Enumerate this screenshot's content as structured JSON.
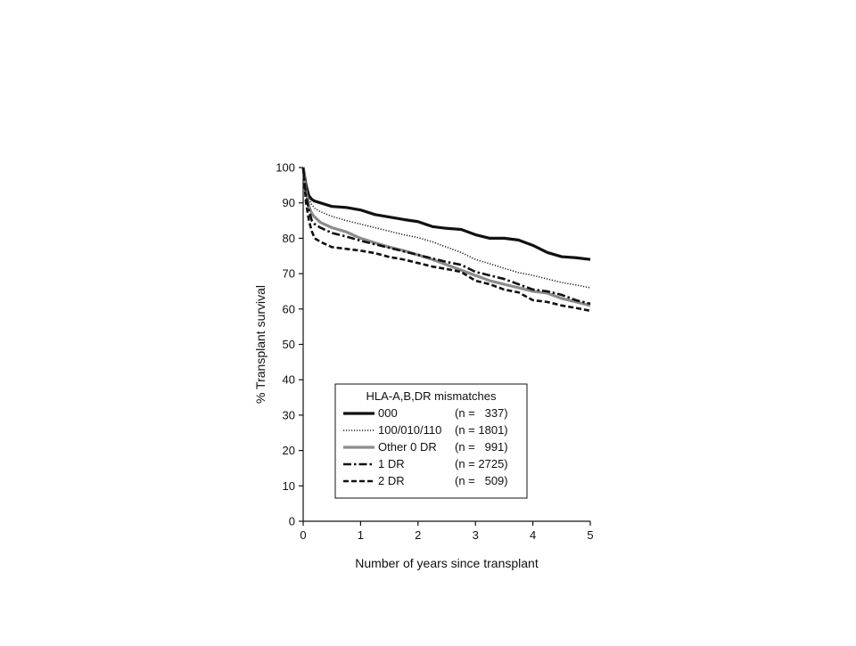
{
  "chart_data": {
    "type": "line",
    "title": "",
    "xlabel": "Number of years since transplant",
    "ylabel": "% Transplant survival",
    "xlim": [
      0,
      5
    ],
    "ylim": [
      0,
      100
    ],
    "xticks": [
      0,
      1,
      2,
      3,
      4,
      5
    ],
    "yticks": [
      0,
      10,
      20,
      30,
      40,
      50,
      60,
      70,
      80,
      90,
      100
    ],
    "grid": false,
    "legend": {
      "title": "HLA-A,B,DR mismatches",
      "placement": "bottom-center"
    },
    "series": [
      {
        "name": "000",
        "n_label": "(n =   337)",
        "color": "#111111",
        "style": "solid-thick",
        "x": [
          0,
          0.05,
          0.1,
          0.15,
          0.2,
          0.3,
          0.5,
          0.75,
          1.0,
          1.25,
          1.5,
          1.75,
          2.0,
          2.25,
          2.5,
          2.75,
          3.0,
          3.25,
          3.5,
          3.75,
          4.0,
          4.25,
          4.5,
          4.75,
          5.0
        ],
        "y": [
          100,
          95,
          92,
          91,
          90.5,
          90,
          89,
          88.7,
          88,
          86.7,
          86,
          85.3,
          84.7,
          83.3,
          82.8,
          82.5,
          81,
          80,
          80,
          79.5,
          78,
          76,
          74.8,
          74.5,
          74
        ]
      },
      {
        "name": "100/010/110",
        "n_label": "(n = 1801)",
        "color": "#222222",
        "style": "dotted",
        "x": [
          0,
          0.05,
          0.1,
          0.15,
          0.2,
          0.3,
          0.5,
          0.75,
          1.0,
          1.25,
          1.5,
          1.75,
          2.0,
          2.25,
          2.5,
          2.75,
          3.0,
          3.25,
          3.5,
          3.75,
          4.0,
          4.25,
          4.5,
          4.75,
          5.0
        ],
        "y": [
          100,
          94,
          91,
          89.5,
          88.5,
          87.5,
          86.2,
          85,
          84,
          83,
          82,
          81,
          80.2,
          79,
          77.5,
          76,
          74,
          72.8,
          71.5,
          70.3,
          69.5,
          68.5,
          67.5,
          66.8,
          66
        ]
      },
      {
        "name": "Other 0 DR",
        "n_label": "(n =   991)",
        "color": "#8c8c8c",
        "style": "solid-gray",
        "x": [
          0,
          0.05,
          0.1,
          0.15,
          0.2,
          0.3,
          0.5,
          0.75,
          1.0,
          1.25,
          1.5,
          1.75,
          2.0,
          2.25,
          2.5,
          2.75,
          3.0,
          3.25,
          3.5,
          3.75,
          4.0,
          4.25,
          4.5,
          4.75,
          5.0
        ],
        "y": [
          100,
          93,
          89,
          87,
          86,
          84.5,
          83,
          81.8,
          80,
          78.7,
          77.5,
          76.5,
          75.3,
          74,
          72.5,
          71,
          69.5,
          68,
          67,
          66,
          65,
          64.5,
          63,
          62,
          61
        ]
      },
      {
        "name": "1 DR",
        "n_label": "(n = 2725)",
        "color": "#111111",
        "style": "dash-dot",
        "x": [
          0,
          0.05,
          0.1,
          0.15,
          0.2,
          0.3,
          0.5,
          0.75,
          1.0,
          1.25,
          1.5,
          1.75,
          2.0,
          2.25,
          2.5,
          2.75,
          3.0,
          3.25,
          3.5,
          3.75,
          4.0,
          4.25,
          4.5,
          4.75,
          5.0
        ],
        "y": [
          100,
          92,
          88,
          85,
          84,
          83,
          81.5,
          80.5,
          79.3,
          78.3,
          77.3,
          76.3,
          75.3,
          74.3,
          73.3,
          72.5,
          70.5,
          69.5,
          68.5,
          67,
          65.5,
          65,
          64,
          62.5,
          61.5
        ]
      },
      {
        "name": "2 DR",
        "n_label": "(n =   509)",
        "color": "#111111",
        "style": "dashed",
        "x": [
          0,
          0.05,
          0.1,
          0.15,
          0.2,
          0.3,
          0.5,
          0.75,
          1.0,
          1.25,
          1.5,
          1.75,
          2.0,
          2.25,
          2.5,
          2.75,
          3.0,
          3.25,
          3.5,
          3.75,
          4.0,
          4.25,
          4.5,
          4.75,
          5.0
        ],
        "y": [
          100,
          90,
          85,
          82,
          80,
          79,
          77.5,
          77,
          76.5,
          75.8,
          74.7,
          74,
          73,
          72,
          71.3,
          70.5,
          68,
          67,
          65.5,
          64.7,
          62.5,
          62,
          61,
          60.3,
          59.5
        ]
      }
    ]
  }
}
